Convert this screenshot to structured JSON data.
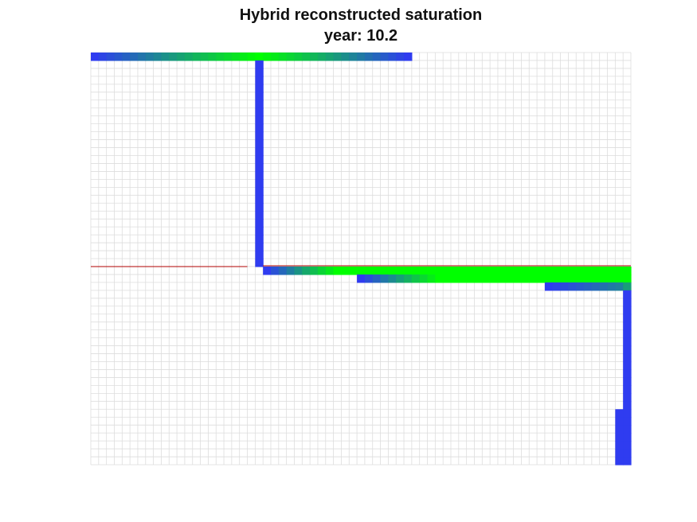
{
  "chart_data": {
    "type": "heatmap",
    "title": "Hybrid reconstructed saturation",
    "subtitle_prefix": "year: ",
    "year": "10.2",
    "grid": {
      "cols": 69,
      "rows": 52,
      "lines": true
    },
    "colors": {
      "low": "#2f3cf0",
      "high": "#00ff00",
      "grid": "#dddddd",
      "fault": "#b00000"
    },
    "colorscale": "blue-to-green by saturation (0 = blue, 1 = green)",
    "fault_line": {
      "row": 27,
      "from_col": 0,
      "to_col": 69
    },
    "saturated_cells": [
      {
        "row": 0,
        "cols": [
          0,
          41
        ],
        "s": [
          0.0,
          1.0,
          0.0
        ],
        "peak_col": 21
      },
      {
        "row": 1,
        "cols": [
          21,
          22
        ],
        "s": [
          0.0
        ]
      },
      {
        "row": 2,
        "cols": [
          21,
          22
        ],
        "s": [
          0.0
        ]
      },
      {
        "row": 3,
        "cols": [
          21,
          22
        ],
        "s": [
          0.0
        ]
      },
      {
        "row": 4,
        "cols": [
          21,
          22
        ],
        "s": [
          0.0
        ]
      },
      {
        "row": 5,
        "cols": [
          21,
          22
        ],
        "s": [
          0.0
        ]
      },
      {
        "row": 6,
        "cols": [
          21,
          22
        ],
        "s": [
          0.0
        ]
      },
      {
        "row": 7,
        "cols": [
          21,
          22
        ],
        "s": [
          0.0
        ]
      },
      {
        "row": 8,
        "cols": [
          21,
          22
        ],
        "s": [
          0.0
        ]
      },
      {
        "row": 9,
        "cols": [
          21,
          22
        ],
        "s": [
          0.0
        ]
      },
      {
        "row": 10,
        "cols": [
          21,
          22
        ],
        "s": [
          0.0
        ]
      },
      {
        "row": 11,
        "cols": [
          21,
          22
        ],
        "s": [
          0.0
        ]
      },
      {
        "row": 12,
        "cols": [
          21,
          22
        ],
        "s": [
          0.0
        ]
      },
      {
        "row": 13,
        "cols": [
          21,
          22
        ],
        "s": [
          0.0
        ]
      },
      {
        "row": 14,
        "cols": [
          21,
          22
        ],
        "s": [
          0.0
        ]
      },
      {
        "row": 15,
        "cols": [
          21,
          22
        ],
        "s": [
          0.0
        ]
      },
      {
        "row": 16,
        "cols": [
          21,
          22
        ],
        "s": [
          0.0
        ]
      },
      {
        "row": 17,
        "cols": [
          21,
          22
        ],
        "s": [
          0.0
        ]
      },
      {
        "row": 18,
        "cols": [
          21,
          22
        ],
        "s": [
          0.0
        ]
      },
      {
        "row": 19,
        "cols": [
          21,
          22
        ],
        "s": [
          0.0
        ]
      },
      {
        "row": 20,
        "cols": [
          21,
          22
        ],
        "s": [
          0.0
        ]
      },
      {
        "row": 21,
        "cols": [
          21,
          22
        ],
        "s": [
          0.0
        ]
      },
      {
        "row": 22,
        "cols": [
          21,
          22
        ],
        "s": [
          0.0
        ]
      },
      {
        "row": 23,
        "cols": [
          21,
          22
        ],
        "s": [
          0.0
        ]
      },
      {
        "row": 24,
        "cols": [
          21,
          22
        ],
        "s": [
          0.0
        ]
      },
      {
        "row": 25,
        "cols": [
          21,
          22
        ],
        "s": [
          0.0
        ]
      },
      {
        "row": 26,
        "cols": [
          21,
          22
        ],
        "s": [
          0.0
        ]
      },
      {
        "row": 27,
        "cols": [
          22,
          69
        ],
        "s": [
          0.0,
          1.0,
          1.0
        ],
        "peak_col": 31
      },
      {
        "row": 28,
        "cols": [
          34,
          69
        ],
        "s": [
          0.0,
          1.0,
          1.0
        ],
        "peak_col": 44
      },
      {
        "row": 29,
        "cols": [
          58,
          69
        ],
        "s": [
          0.0,
          0.35,
          0.5
        ],
        "peak_col": 67
      },
      {
        "row": 30,
        "cols": [
          68,
          69
        ],
        "s": [
          0.0
        ]
      },
      {
        "row": 31,
        "cols": [
          68,
          69
        ],
        "s": [
          0.0
        ]
      },
      {
        "row": 32,
        "cols": [
          68,
          69
        ],
        "s": [
          0.0
        ]
      },
      {
        "row": 33,
        "cols": [
          68,
          69
        ],
        "s": [
          0.0
        ]
      },
      {
        "row": 34,
        "cols": [
          68,
          69
        ],
        "s": [
          0.0
        ]
      },
      {
        "row": 35,
        "cols": [
          68,
          69
        ],
        "s": [
          0.0
        ]
      },
      {
        "row": 36,
        "cols": [
          68,
          69
        ],
        "s": [
          0.0
        ]
      },
      {
        "row": 37,
        "cols": [
          68,
          69
        ],
        "s": [
          0.0
        ]
      },
      {
        "row": 38,
        "cols": [
          68,
          69
        ],
        "s": [
          0.0
        ]
      },
      {
        "row": 39,
        "cols": [
          68,
          69
        ],
        "s": [
          0.0
        ]
      },
      {
        "row": 40,
        "cols": [
          68,
          69
        ],
        "s": [
          0.0
        ]
      },
      {
        "row": 41,
        "cols": [
          68,
          69
        ],
        "s": [
          0.0
        ]
      },
      {
        "row": 42,
        "cols": [
          68,
          69
        ],
        "s": [
          0.0
        ]
      },
      {
        "row": 43,
        "cols": [
          68,
          69
        ],
        "s": [
          0.0
        ]
      },
      {
        "row": 44,
        "cols": [
          68,
          69
        ],
        "s": [
          0.0
        ]
      },
      {
        "row": 45,
        "cols": [
          67,
          69
        ],
        "s": [
          0.0
        ]
      },
      {
        "row": 46,
        "cols": [
          67,
          69
        ],
        "s": [
          0.0
        ]
      },
      {
        "row": 47,
        "cols": [
          67,
          69
        ],
        "s": [
          0.0
        ]
      },
      {
        "row": 48,
        "cols": [
          67,
          69
        ],
        "s": [
          0.0
        ]
      },
      {
        "row": 49,
        "cols": [
          67,
          69
        ],
        "s": [
          0.0
        ]
      },
      {
        "row": 50,
        "cols": [
          67,
          69
        ],
        "s": [
          0.0
        ]
      },
      {
        "row": 51,
        "cols": [
          67,
          69
        ],
        "s": [
          0.0
        ]
      }
    ]
  }
}
